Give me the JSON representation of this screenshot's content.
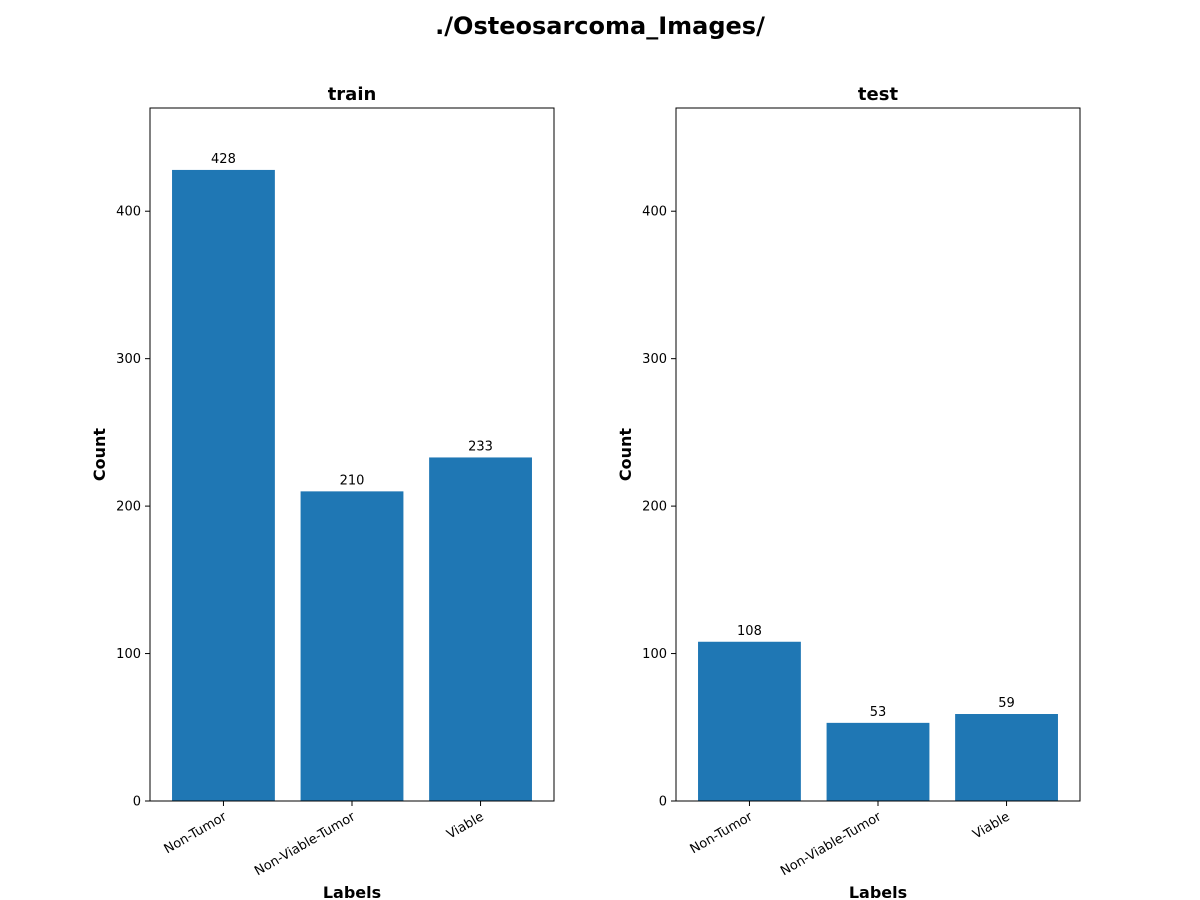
{
  "title": "./Osteosarcoma_Images/",
  "chart_data": [
    {
      "type": "bar",
      "title": "train",
      "xlabel": "Labels",
      "ylabel": "Count",
      "categories": [
        "Non-Tumor",
        "Non-Viable-Tumor",
        "Viable"
      ],
      "values": [
        428,
        210,
        233
      ],
      "ylim": [
        0,
        470
      ],
      "yticks": [
        0,
        100,
        200,
        300,
        400
      ],
      "bar_color": "#1f77b4",
      "grid": false
    },
    {
      "type": "bar",
      "title": "test",
      "xlabel": "Labels",
      "ylabel": "Count",
      "categories": [
        "Non-Tumor",
        "Non-Viable-Tumor",
        "Viable"
      ],
      "values": [
        108,
        53,
        59
      ],
      "ylim": [
        0,
        470
      ],
      "yticks": [
        0,
        100,
        200,
        300,
        400
      ],
      "bar_color": "#1f77b4",
      "grid": false
    }
  ]
}
